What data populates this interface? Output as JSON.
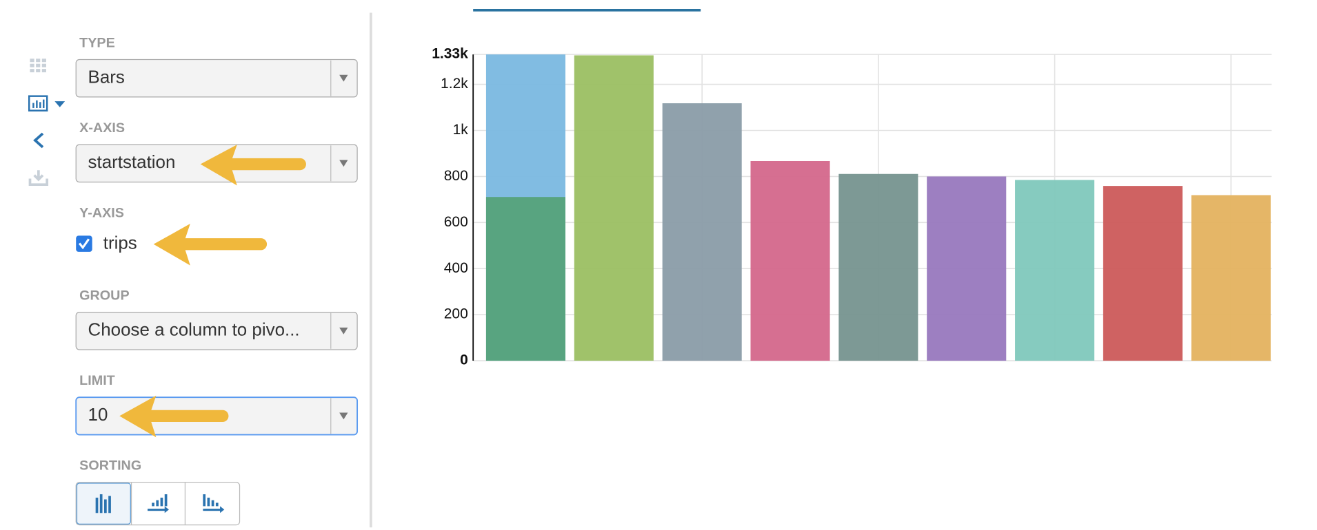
{
  "sidebar": {
    "type_label": "TYPE",
    "type_value": "Bars",
    "x_axis_label": "X-AXIS",
    "x_axis_value": "startstation",
    "y_axis_label": "Y-AXIS",
    "y_axis_value": "trips",
    "group_label": "GROUP",
    "group_value": "Choose a column to pivo...",
    "limit_label": "LIMIT",
    "limit_value": "10",
    "sorting_label": "SORTING"
  },
  "chart_data": {
    "type": "bar",
    "categories": [
      null,
      null,
      null,
      null,
      null,
      null,
      null,
      null,
      null
    ],
    "series": [
      {
        "colors": [
          "#7ab8e0",
          "#9bbf62",
          "#8a9ca8",
          "#d4678b",
          "#76948f",
          "#9878be",
          "#7fc8bc",
          "#cc5a5a",
          "#e4b25f"
        ],
        "values": [
          1330,
          1326,
          1118,
          867,
          811,
          800,
          785,
          759,
          719
        ]
      },
      {
        "color": "#55a27a",
        "values": [
          711,
          null,
          null,
          null,
          null,
          null,
          null,
          null,
          null
        ]
      }
    ],
    "ylim": [
      0,
      1330
    ],
    "yticks": [
      0,
      200,
      400,
      600,
      800,
      {
        "value": 1000,
        "label": "1k"
      },
      {
        "value": 1200,
        "label": "1.2k"
      },
      {
        "value": 1330,
        "label": "1.33k"
      }
    ],
    "grid": true
  }
}
